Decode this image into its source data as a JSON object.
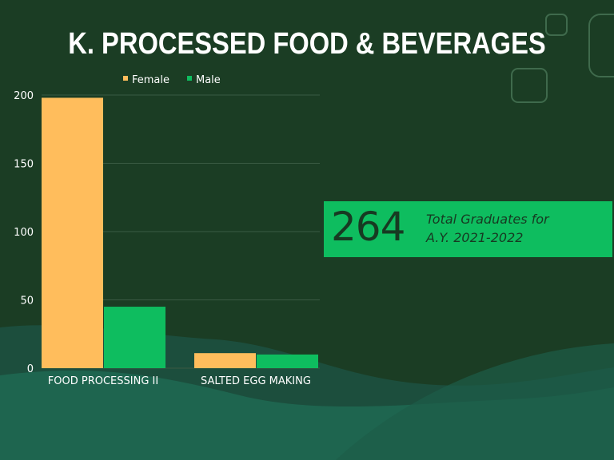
{
  "title": "K. PROCESSED FOOD & BEVERAGES",
  "stat": {
    "number": "264",
    "line1": "Total Graduates for",
    "line2": "A.Y. 2021-2022"
  },
  "colors": {
    "background": "#1b3d24",
    "wave": "#1d5a4a",
    "female": "#ffbd5c",
    "male": "#0ebd5f",
    "stat_box": "#0ebd5f"
  },
  "chart_data": {
    "type": "bar",
    "categories": [
      "FOOD PROCESSING II",
      "SALTED EGG MAKING"
    ],
    "series": [
      {
        "name": "Female",
        "values": [
          198,
          11
        ]
      },
      {
        "name": "Male",
        "values": [
          45,
          10
        ]
      }
    ],
    "ylim": [
      0,
      200
    ],
    "yticks": [
      "0",
      "50",
      "100",
      "150",
      "200"
    ],
    "grid": true,
    "legend": "top-center",
    "xlabel": "",
    "ylabel": ""
  }
}
